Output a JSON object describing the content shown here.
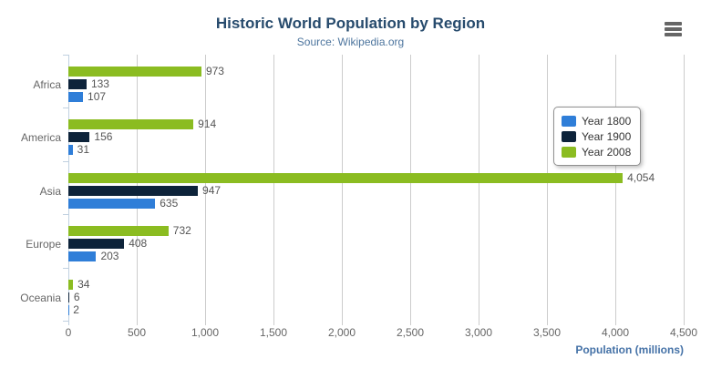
{
  "colors": {
    "title": "#274b6d",
    "subtitle": "#4d759e",
    "axis_label": "#666666",
    "category_label": "#666666",
    "data_label": "#555555",
    "grid_line": "#cccccc",
    "axis_line": "#c0d0e0",
    "xaxis_title": "#4572a7",
    "legend_border": "#909090",
    "legend_text": "#333333",
    "menu_icon": "#666666",
    "background": "#ffffff"
  },
  "chart_data": {
    "type": "bar",
    "orientation": "horizontal",
    "title": "Historic World Population by Region",
    "subtitle": "Source: Wikipedia.org",
    "categories": [
      "Africa",
      "America",
      "Asia",
      "Europe",
      "Oceania"
    ],
    "series": [
      {
        "name": "Year 1800",
        "color": "#2f7ed8",
        "values": [
          107,
          31,
          635,
          203,
          2
        ]
      },
      {
        "name": "Year 1900",
        "color": "#0d233a",
        "values": [
          133,
          156,
          947,
          408,
          6
        ]
      },
      {
        "name": "Year 2008",
        "color": "#8bbc21",
        "values": [
          973,
          914,
          4054,
          732,
          34
        ]
      }
    ],
    "bar_display_order_top_to_bottom": [
      "Year 2008",
      "Year 1900",
      "Year 1800"
    ],
    "data_labels": true,
    "xlabel": "Population (millions)",
    "xlim": [
      0,
      4500
    ],
    "x_tick_labels": [
      "0",
      "500",
      "1,000",
      "1,500",
      "2,000",
      "2,500",
      "3,000",
      "3,500",
      "4,000",
      "4,500"
    ],
    "grid": true,
    "legend": {
      "position": "right-overlay",
      "items": [
        {
          "label": "Year 1800",
          "color": "#2f7ed8"
        },
        {
          "label": "Year 1900",
          "color": "#0d233a"
        },
        {
          "label": "Year 2008",
          "color": "#8bbc21"
        }
      ]
    }
  }
}
